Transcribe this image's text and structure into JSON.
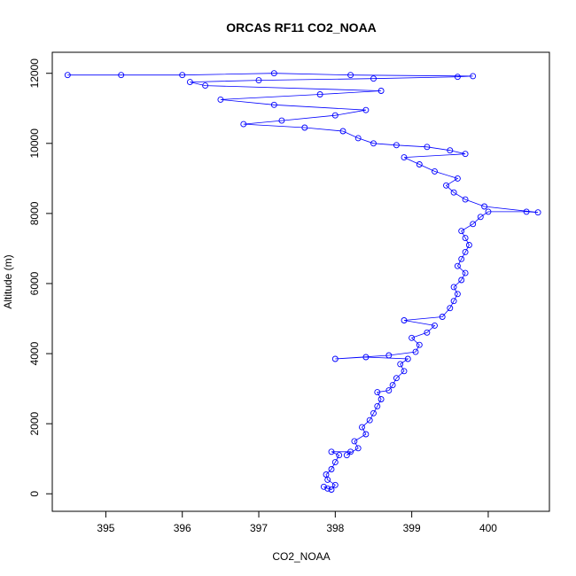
{
  "chart_data": {
    "type": "line",
    "title": "ORCAS RF11 CO2_NOAA",
    "xlabel": "CO2_NOAA",
    "ylabel": "Altitude (m)",
    "xlim": [
      394.3,
      400.8
    ],
    "ylim": [
      -500,
      12600
    ],
    "xticks": [
      "395",
      "396",
      "397",
      "398",
      "399",
      "400"
    ],
    "yticks": [
      "0",
      "2000",
      "4000",
      "6000",
      "8000",
      "10000",
      "12000"
    ],
    "grid": false,
    "marker": "open-circle",
    "colors": {
      "series": "#0000ff",
      "axes": "#000000"
    },
    "series": [
      {
        "points": [
          [
            397.9,
            150
          ],
          [
            397.85,
            200
          ],
          [
            397.95,
            120
          ],
          [
            398.0,
            250
          ],
          [
            397.9,
            400
          ],
          [
            397.88,
            550
          ],
          [
            397.95,
            700
          ],
          [
            398.0,
            900
          ],
          [
            398.05,
            1100
          ],
          [
            397.95,
            1200
          ],
          [
            398.2,
            1200
          ],
          [
            398.15,
            1100
          ],
          [
            398.3,
            1300
          ],
          [
            398.25,
            1500
          ],
          [
            398.4,
            1700
          ],
          [
            398.35,
            1900
          ],
          [
            398.45,
            2100
          ],
          [
            398.5,
            2300
          ],
          [
            398.55,
            2500
          ],
          [
            398.6,
            2700
          ],
          [
            398.55,
            2900
          ],
          [
            398.7,
            2950
          ],
          [
            398.75,
            3100
          ],
          [
            398.8,
            3300
          ],
          [
            398.9,
            3500
          ],
          [
            398.85,
            3700
          ],
          [
            398.95,
            3850
          ],
          [
            398.4,
            3900
          ],
          [
            398.0,
            3850
          ],
          [
            398.7,
            3950
          ],
          [
            399.05,
            4050
          ],
          [
            399.1,
            4250
          ],
          [
            399.0,
            4450
          ],
          [
            399.2,
            4600
          ],
          [
            399.3,
            4800
          ],
          [
            398.9,
            4950
          ],
          [
            399.4,
            5050
          ],
          [
            399.5,
            5300
          ],
          [
            399.55,
            5500
          ],
          [
            399.6,
            5700
          ],
          [
            399.55,
            5900
          ],
          [
            399.65,
            6100
          ],
          [
            399.7,
            6300
          ],
          [
            399.6,
            6500
          ],
          [
            399.65,
            6700
          ],
          [
            399.7,
            6900
          ],
          [
            399.75,
            7100
          ],
          [
            399.7,
            7300
          ],
          [
            399.65,
            7500
          ],
          [
            399.8,
            7700
          ],
          [
            399.9,
            7900
          ],
          [
            400.0,
            8050
          ],
          [
            400.5,
            8050
          ],
          [
            400.65,
            8030
          ],
          [
            399.95,
            8200
          ],
          [
            399.7,
            8400
          ],
          [
            399.55,
            8600
          ],
          [
            399.45,
            8800
          ],
          [
            399.6,
            9000
          ],
          [
            399.3,
            9200
          ],
          [
            399.1,
            9400
          ],
          [
            398.9,
            9600
          ],
          [
            399.7,
            9700
          ],
          [
            399.5,
            9800
          ],
          [
            399.2,
            9900
          ],
          [
            398.8,
            9950
          ],
          [
            398.5,
            10000
          ],
          [
            398.3,
            10150
          ],
          [
            398.1,
            10350
          ],
          [
            397.6,
            10450
          ],
          [
            396.8,
            10550
          ],
          [
            397.3,
            10650
          ],
          [
            398.0,
            10800
          ],
          [
            398.4,
            10950
          ],
          [
            397.2,
            11100
          ],
          [
            396.5,
            11250
          ],
          [
            397.8,
            11400
          ],
          [
            398.6,
            11500
          ],
          [
            396.3,
            11650
          ],
          [
            396.1,
            11750
          ],
          [
            397.0,
            11800
          ],
          [
            398.5,
            11850
          ],
          [
            399.6,
            11900
          ],
          [
            399.8,
            11920
          ],
          [
            398.2,
            11950
          ],
          [
            397.2,
            12000
          ],
          [
            396.0,
            11950
          ],
          [
            395.2,
            11950
          ],
          [
            394.5,
            11950
          ]
        ]
      }
    ]
  }
}
